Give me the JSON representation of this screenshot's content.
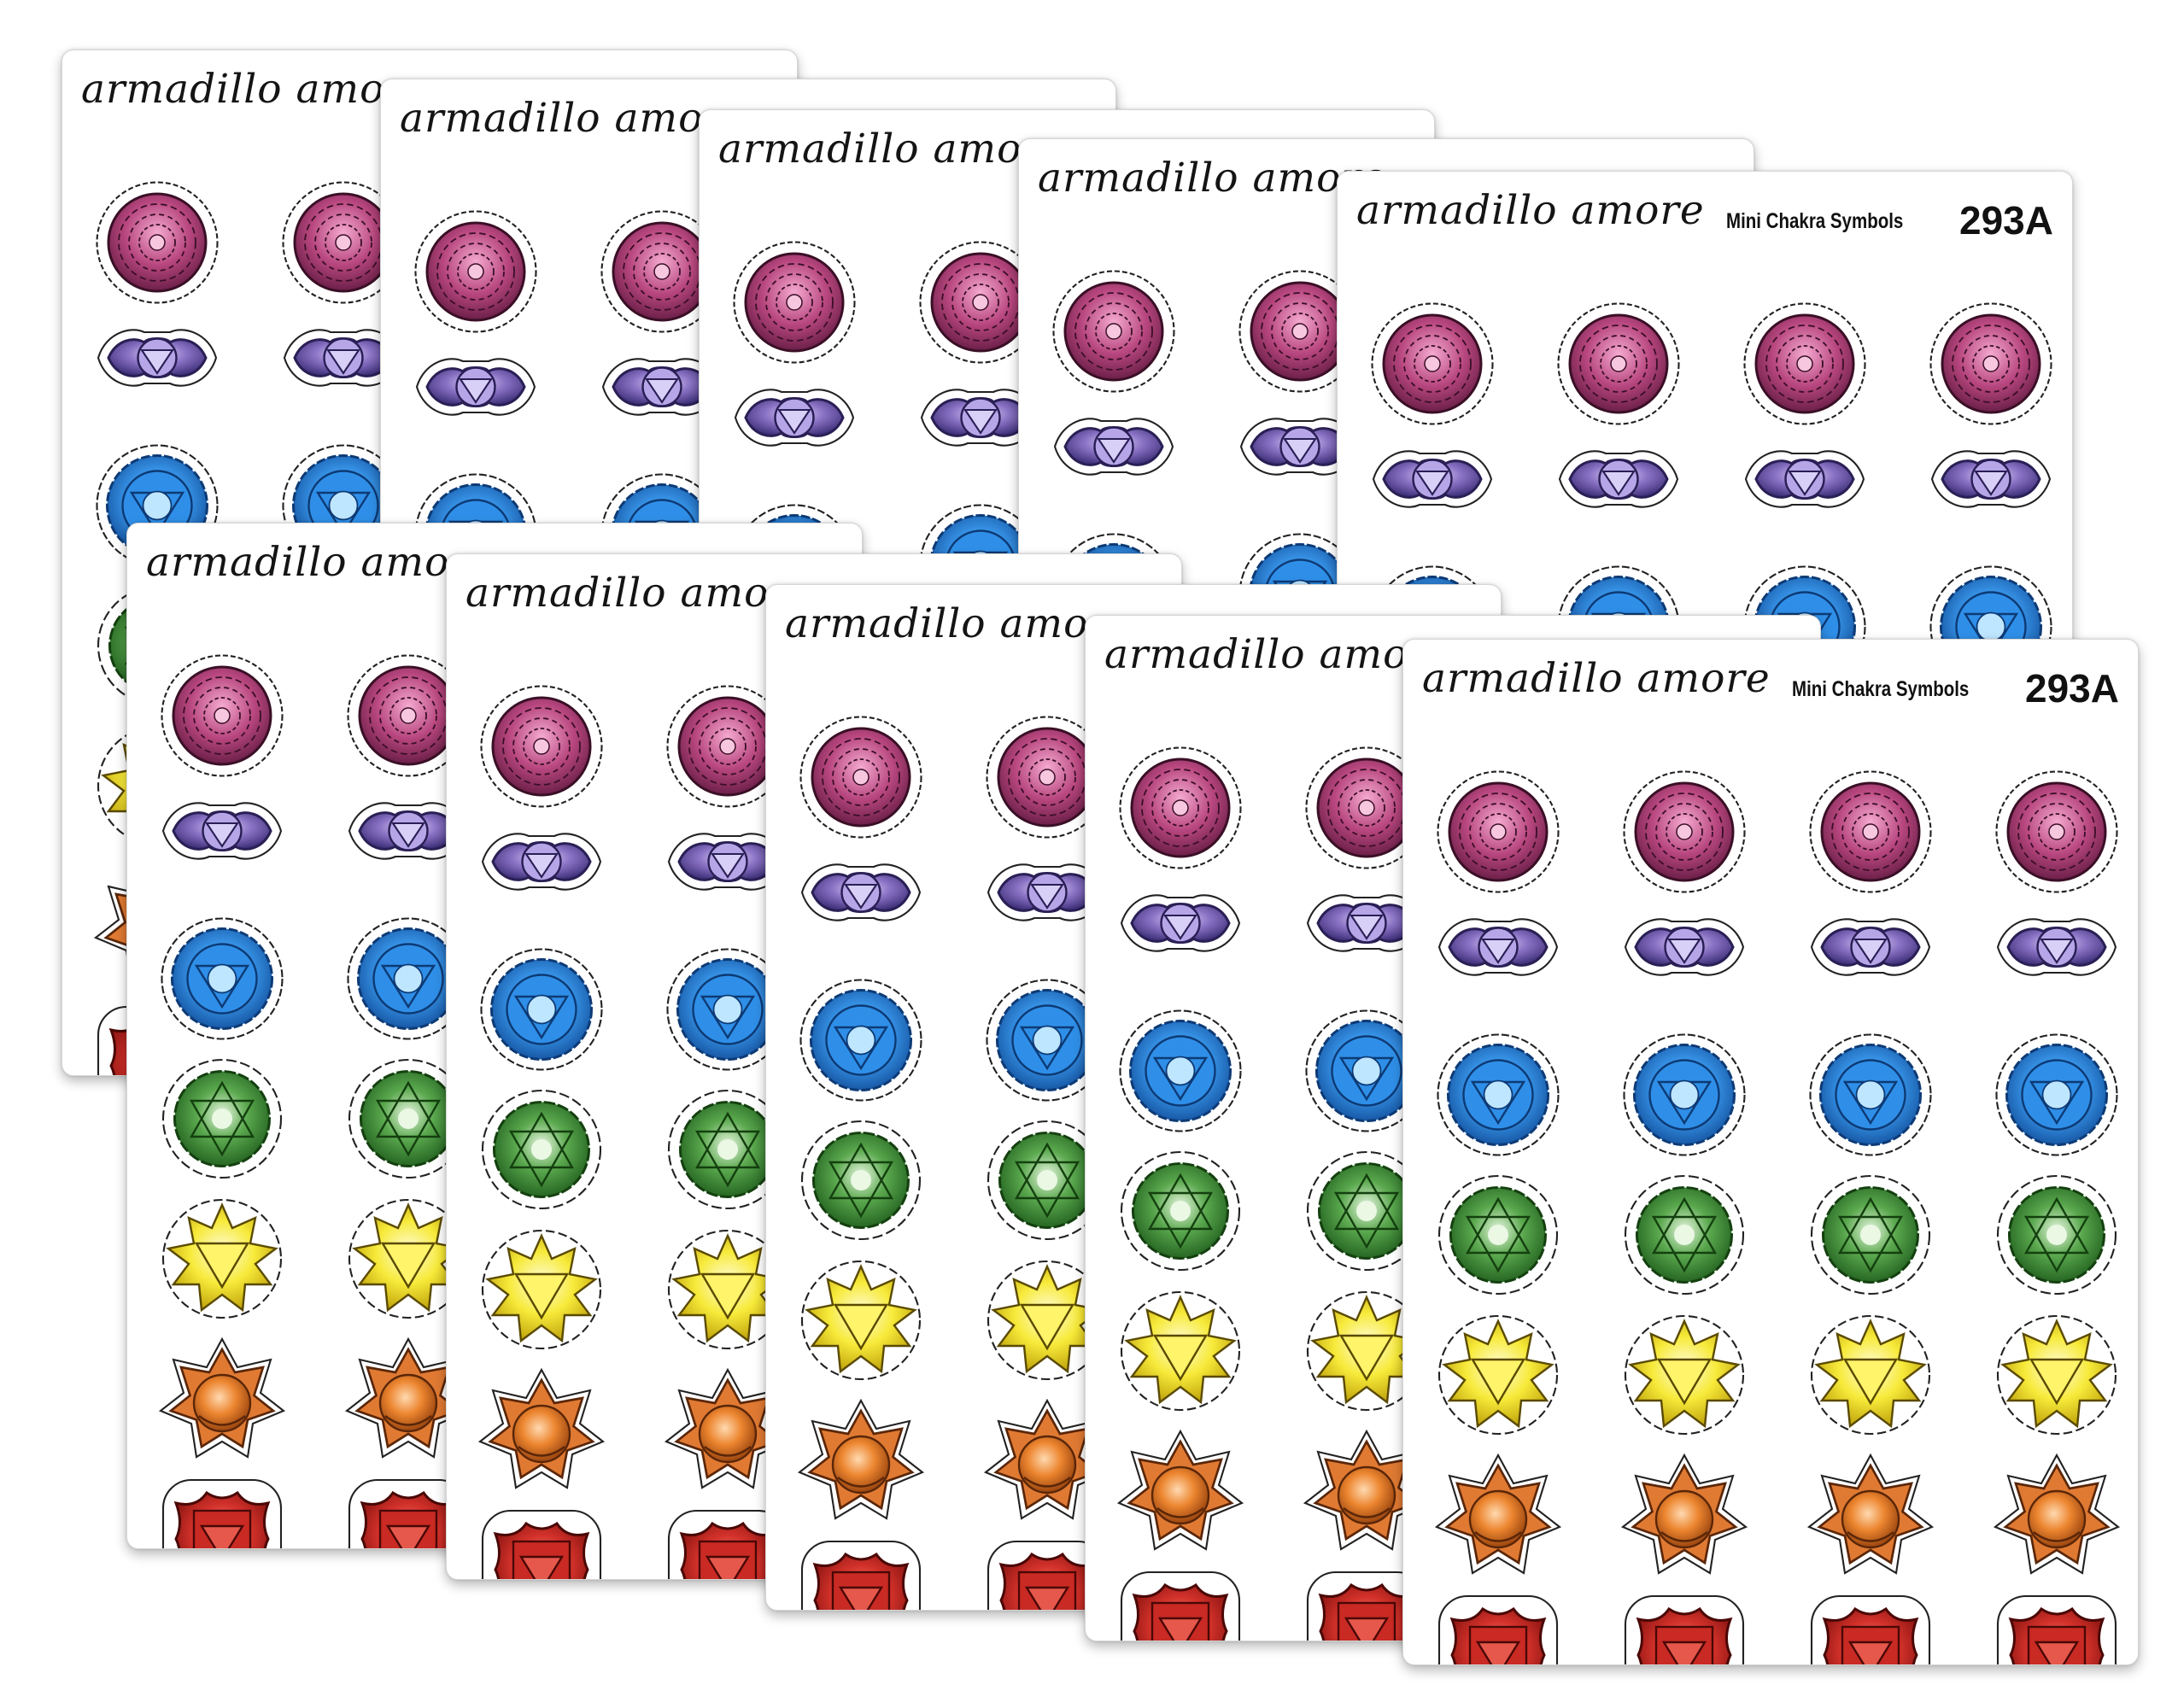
{
  "sheet_label": {
    "brand": "armadillo amore",
    "subtitle": "Mini Chakra Symbols",
    "code": "293A"
  },
  "sticker_rows": [
    {
      "chakra": "crown",
      "color": "#b8477f"
    },
    {
      "chakra": "third-eye",
      "color": "#8a72c4"
    },
    {
      "chakra": "throat",
      "color": "#2b86e0"
    },
    {
      "chakra": "heart",
      "color": "#3f8d3a"
    },
    {
      "chakra": "solar-plexus",
      "color": "#f4e52c"
    },
    {
      "chakra": "sacral",
      "color": "#e57a2b"
    },
    {
      "chakra": "root",
      "color": "#cf2e26"
    }
  ]
}
